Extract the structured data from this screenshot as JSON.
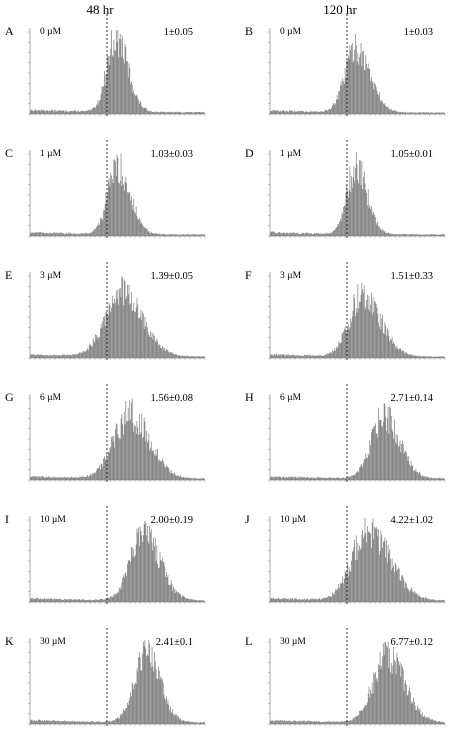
{
  "figure": {
    "column_titles": [
      "48 hr",
      "120 hr"
    ]
  },
  "colors": {
    "bars": "#7d7d7d",
    "axis": "#888888",
    "dashed": "#000000"
  },
  "chart_data": [
    {
      "type": "area",
      "panel": "A",
      "column": "48 hr",
      "concentration": "0 µM",
      "value": "1±0.05",
      "peak_center": 0.49,
      "peak_width": 0.05,
      "skew": 0.35,
      "peak_height": 0.92
    },
    {
      "type": "area",
      "panel": "B",
      "column": "120 hr",
      "concentration": "0 µM",
      "value": "1±0.03",
      "peak_center": 0.49,
      "peak_width": 0.06,
      "skew": 0.35,
      "peak_height": 0.78
    },
    {
      "type": "area",
      "panel": "C",
      "column": "48 hr",
      "concentration": "1 µM",
      "value": "1.03±0.03",
      "peak_center": 0.5,
      "peak_width": 0.055,
      "skew": 0.3,
      "peak_height": 0.82
    },
    {
      "type": "area",
      "panel": "D",
      "column": "120 hr",
      "concentration": "1 µM",
      "value": "1.05±0.01",
      "peak_center": 0.49,
      "peak_width": 0.05,
      "skew": 0.3,
      "peak_height": 0.82
    },
    {
      "type": "area",
      "panel": "E",
      "column": "48 hr",
      "concentration": "3 µM",
      "value": "1.39±0.05",
      "peak_center": 0.52,
      "peak_width": 0.09,
      "skew": 0.3,
      "peak_height": 0.8
    },
    {
      "type": "area",
      "panel": "F",
      "column": "120 hr",
      "concentration": "3 µM",
      "value": "1.51±0.33",
      "peak_center": 0.53,
      "peak_width": 0.075,
      "skew": 0.35,
      "peak_height": 0.76
    },
    {
      "type": "area",
      "panel": "G",
      "column": "48 hr",
      "concentration": "6 µM",
      "value": "1.56±0.08",
      "peak_center": 0.57,
      "peak_width": 0.09,
      "skew": 0.25,
      "peak_height": 0.78
    },
    {
      "type": "area",
      "panel": "H",
      "column": "120 hr",
      "concentration": "6 µM",
      "value": "2.71±0.14",
      "peak_center": 0.65,
      "peak_width": 0.07,
      "skew": 0.3,
      "peak_height": 0.76
    },
    {
      "type": "area",
      "panel": "I",
      "column": "48 hr",
      "concentration": "10 µM",
      "value": "2.00±0.19",
      "peak_center": 0.65,
      "peak_width": 0.075,
      "skew": 0.25,
      "peak_height": 0.8
    },
    {
      "type": "area",
      "panel": "J",
      "column": "120 hr",
      "concentration": "10 µM",
      "value": "4.22±1.02",
      "peak_center": 0.56,
      "peak_width": 0.09,
      "skew": 0.4,
      "peak_height": 0.84
    },
    {
      "type": "area",
      "panel": "K",
      "column": "48 hr",
      "concentration": "30 µM",
      "value": "2.41±0.1",
      "peak_center": 0.66,
      "peak_width": 0.065,
      "skew": 0.25,
      "peak_height": 0.86
    },
    {
      "type": "area",
      "panel": "L",
      "column": "120 hr",
      "concentration": "30 µM",
      "value": "6.77±0.12",
      "peak_center": 0.67,
      "peak_width": 0.08,
      "skew": 0.25,
      "peak_height": 0.8
    }
  ]
}
